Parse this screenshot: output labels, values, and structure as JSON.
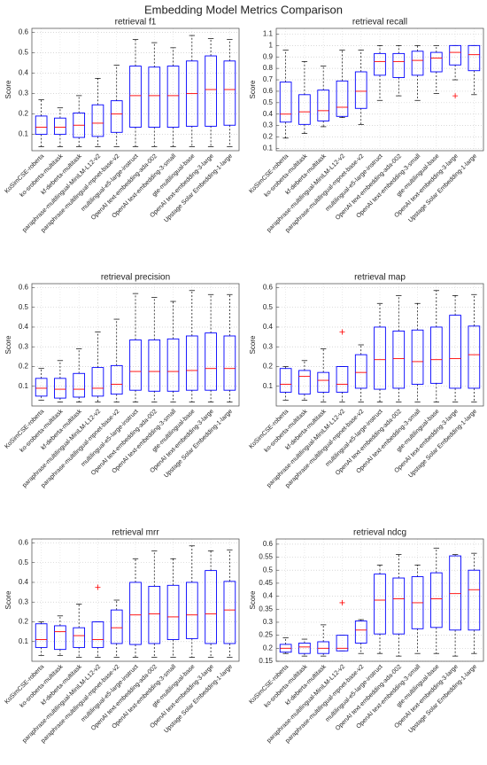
{
  "title": "Embedding Model Metrics Comparison",
  "chart_data": [
    {
      "type": "box",
      "title": "retrieval f1",
      "ylabel": "Score",
      "categories": [
        "KoSimCSE-roberta",
        "ko-sroberta-multitask",
        "kf-deberta-multitask",
        "paraphrase-multilingual-MiniLM-L12-v2",
        "paraphrase-multilingual-mpnet-base-v2",
        "multilingual-e5-large-instruct",
        "OpenAI text-embedding-ada-002",
        "OpenAI text-embedding-3-small",
        "gte-multilingual-base",
        "OpenAI text-embedding-3-large",
        "Upstage Solar Embedding-1-large"
      ],
      "whisker_low": [
        0.04,
        0.04,
        0.04,
        0.04,
        0.04,
        0.04,
        0.04,
        0.04,
        0.04,
        0.04,
        0.04
      ],
      "q1": [
        0.1,
        0.1,
        0.085,
        0.09,
        0.11,
        0.135,
        0.135,
        0.135,
        0.14,
        0.14,
        0.145
      ],
      "median": [
        0.135,
        0.135,
        0.145,
        0.155,
        0.2,
        0.29,
        0.29,
        0.29,
        0.3,
        0.32,
        0.32
      ],
      "q3": [
        0.19,
        0.18,
        0.205,
        0.245,
        0.265,
        0.435,
        0.43,
        0.435,
        0.46,
        0.485,
        0.46
      ],
      "whisker_high": [
        0.27,
        0.23,
        0.29,
        0.375,
        0.44,
        0.565,
        0.55,
        0.525,
        0.585,
        0.57,
        0.565
      ],
      "outliers": [
        [],
        [],
        [],
        [],
        [],
        [],
        [],
        [],
        [],
        [],
        []
      ],
      "ylim": [
        0.02,
        0.62
      ],
      "yticks": [
        0.1,
        0.2,
        0.3,
        0.4,
        0.5,
        0.6
      ],
      "grid": true,
      "box_color": "#0000ff",
      "median_color": "#ff0000"
    },
    {
      "type": "box",
      "title": "retrieval recall",
      "ylabel": "Score",
      "categories": [
        "KoSimCSE-roberta",
        "ko-sroberta-multitask",
        "kf-deberta-multitask",
        "paraphrase-multilingual-MiniLM-L12-v2",
        "paraphrase-multilingual-mpnet-base-v2",
        "multilingual-e5-large-instruct",
        "OpenAI text-embedding-ada-002",
        "OpenAI text-embedding-3-small",
        "gte-multilingual-base",
        "OpenAI text-embedding-3-large",
        "Upstage Solar Embedding-1-large"
      ],
      "whisker_low": [
        0.19,
        0.23,
        0.29,
        0.37,
        0.31,
        0.52,
        0.56,
        0.52,
        0.58,
        0.7,
        0.57
      ],
      "q1": [
        0.33,
        0.31,
        0.34,
        0.38,
        0.45,
        0.74,
        0.72,
        0.74,
        0.77,
        0.83,
        0.78
      ],
      "median": [
        0.4,
        0.42,
        0.43,
        0.46,
        0.6,
        0.86,
        0.86,
        0.87,
        0.89,
        0.94,
        0.92
      ],
      "q3": [
        0.68,
        0.57,
        0.61,
        0.69,
        0.77,
        0.93,
        0.93,
        0.95,
        0.94,
        1.0,
        1.0
      ],
      "whisker_high": [
        0.96,
        0.86,
        0.82,
        0.96,
        0.96,
        1.0,
        1.0,
        1.0,
        1.0,
        1.0,
        1.0
      ],
      "outliers": [
        [],
        [],
        [],
        [],
        [],
        [],
        [],
        [],
        [],
        [
          0.56
        ],
        []
      ],
      "ylim": [
        0.08,
        1.15
      ],
      "yticks": [
        0.1,
        0.2,
        0.3,
        0.4,
        0.5,
        0.6,
        0.7,
        0.8,
        0.9,
        1,
        1.1
      ],
      "grid": true,
      "box_color": "#0000ff",
      "median_color": "#ff0000"
    },
    {
      "type": "box",
      "title": "retrieval precision",
      "ylabel": "Score",
      "categories": [
        "KoSimCSE-roberta",
        "ko-sroberta-multitask",
        "kf-deberta-multitask",
        "paraphrase-multilingual-MiniLM-L12-v2",
        "paraphrase-multilingual-mpnet-base-v2",
        "multilingual-e5-large-instruct",
        "OpenAI text-embedding-ada-002",
        "OpenAI text-embedding-3-small",
        "gte-multilingual-base",
        "OpenAI text-embedding-3-large",
        "Upstage Solar Embedding-1-large"
      ],
      "whisker_low": [
        0.03,
        0.02,
        0.02,
        0.02,
        0.02,
        0.02,
        0.02,
        0.02,
        0.02,
        0.02,
        0.02
      ],
      "q1": [
        0.05,
        0.04,
        0.045,
        0.05,
        0.06,
        0.08,
        0.075,
        0.075,
        0.08,
        0.08,
        0.08
      ],
      "median": [
        0.09,
        0.085,
        0.085,
        0.09,
        0.11,
        0.175,
        0.175,
        0.175,
        0.18,
        0.19,
        0.19
      ],
      "q3": [
        0.14,
        0.14,
        0.165,
        0.195,
        0.205,
        0.335,
        0.335,
        0.34,
        0.355,
        0.37,
        0.355
      ],
      "whisker_high": [
        0.19,
        0.23,
        0.29,
        0.375,
        0.44,
        0.57,
        0.55,
        0.53,
        0.585,
        0.565,
        0.565
      ],
      "outliers": [
        [],
        [],
        [],
        [],
        [],
        [],
        [],
        [],
        [],
        [],
        []
      ],
      "ylim": [
        0,
        0.62
      ],
      "yticks": [
        0.1,
        0.2,
        0.3,
        0.4,
        0.5,
        0.6
      ],
      "grid": true,
      "box_color": "#0000ff",
      "median_color": "#ff0000"
    },
    {
      "type": "box",
      "title": "retrieval map",
      "ylabel": "Score",
      "categories": [
        "KoSimCSE-roberta",
        "ko-sroberta-multitask",
        "kf-deberta-multitask",
        "paraphrase-multilingual-MiniLM-L12-v2",
        "paraphrase-multilingual-mpnet-base-v2",
        "multilingual-e5-large-instruct",
        "OpenAI text-embedding-ada-002",
        "OpenAI text-embedding-3-small",
        "gte-multilingual-base",
        "OpenAI text-embedding-3-large",
        "Upstage Solar Embedding-1-large"
      ],
      "whisker_low": [
        0.03,
        0.03,
        0.02,
        0.02,
        0.02,
        0.02,
        0.02,
        0.02,
        0.02,
        0.02,
        0.02
      ],
      "q1": [
        0.07,
        0.06,
        0.07,
        0.07,
        0.09,
        0.085,
        0.09,
        0.11,
        0.115,
        0.09,
        0.09
      ],
      "median": [
        0.11,
        0.15,
        0.13,
        0.11,
        0.17,
        0.235,
        0.24,
        0.225,
        0.235,
        0.24,
        0.26
      ],
      "q3": [
        0.19,
        0.18,
        0.17,
        0.2,
        0.26,
        0.4,
        0.38,
        0.385,
        0.4,
        0.46,
        0.405
      ],
      "whisker_high": [
        0.2,
        0.23,
        0.29,
        0.2,
        0.31,
        0.52,
        0.56,
        0.52,
        0.585,
        0.56,
        0.565
      ],
      "outliers": [
        [],
        [],
        [],
        [
          0.375
        ],
        [],
        [],
        [],
        [],
        [],
        [],
        []
      ],
      "ylim": [
        0,
        0.62
      ],
      "yticks": [
        0.1,
        0.2,
        0.3,
        0.4,
        0.5,
        0.6
      ],
      "grid": true,
      "box_color": "#0000ff",
      "median_color": "#ff0000"
    },
    {
      "type": "box",
      "title": "retrieval mrr",
      "ylabel": "Score",
      "categories": [
        "KoSimCSE-roberta",
        "ko-sroberta-multitask",
        "kf-deberta-multitask",
        "paraphrase-multilingual-MiniLM-L12-v2",
        "paraphrase-multilingual-mpnet-base-v2",
        "multilingual-e5-large-instruct",
        "OpenAI text-embedding-ada-002",
        "OpenAI text-embedding-3-small",
        "gte-multilingual-base",
        "OpenAI text-embedding-3-large",
        "Upstage Solar Embedding-1-large"
      ],
      "whisker_low": [
        0.03,
        0.03,
        0.02,
        0.02,
        0.02,
        0.02,
        0.02,
        0.02,
        0.02,
        0.02,
        0.02
      ],
      "q1": [
        0.07,
        0.06,
        0.07,
        0.07,
        0.09,
        0.085,
        0.09,
        0.11,
        0.115,
        0.09,
        0.09
      ],
      "median": [
        0.11,
        0.15,
        0.13,
        0.11,
        0.17,
        0.235,
        0.24,
        0.225,
        0.235,
        0.24,
        0.26
      ],
      "q3": [
        0.19,
        0.18,
        0.17,
        0.2,
        0.26,
        0.4,
        0.38,
        0.385,
        0.4,
        0.46,
        0.405
      ],
      "whisker_high": [
        0.2,
        0.23,
        0.29,
        0.2,
        0.31,
        0.52,
        0.56,
        0.52,
        0.585,
        0.56,
        0.565
      ],
      "outliers": [
        [],
        [],
        [],
        [
          0.375
        ],
        [],
        [],
        [],
        [],
        [],
        [],
        []
      ],
      "ylim": [
        0,
        0.62
      ],
      "yticks": [
        0.1,
        0.2,
        0.3,
        0.4,
        0.5,
        0.6
      ],
      "grid": true,
      "box_color": "#0000ff",
      "median_color": "#ff0000"
    },
    {
      "type": "box",
      "title": "retrieval ndcg",
      "ylabel": "Score",
      "categories": [
        "KoSimCSE-roberta",
        "ko-sroberta-multitask",
        "kf-deberta-multitask",
        "paraphrase-multilingual-MiniLM-L12-v2",
        "paraphrase-multilingual-mpnet-base-v2",
        "multilingual-e5-large-instruct",
        "OpenAI text-embedding-ada-002",
        "OpenAI text-embedding-3-small",
        "gte-multilingual-base",
        "OpenAI text-embedding-3-large",
        "Upstage Solar Embedding-1-large"
      ],
      "whisker_low": [
        0.18,
        0.17,
        0.17,
        0.19,
        0.18,
        0.18,
        0.17,
        0.18,
        0.18,
        0.17,
        0.18
      ],
      "q1": [
        0.185,
        0.18,
        0.18,
        0.19,
        0.22,
        0.255,
        0.255,
        0.275,
        0.28,
        0.27,
        0.27
      ],
      "median": [
        0.2,
        0.205,
        0.2,
        0.2,
        0.27,
        0.385,
        0.39,
        0.375,
        0.39,
        0.41,
        0.425
      ],
      "q3": [
        0.215,
        0.22,
        0.225,
        0.25,
        0.305,
        0.485,
        0.47,
        0.475,
        0.49,
        0.555,
        0.5
      ],
      "whisker_high": [
        0.24,
        0.235,
        0.29,
        0.25,
        0.31,
        0.52,
        0.56,
        0.52,
        0.585,
        0.56,
        0.565
      ],
      "outliers": [
        [],
        [],
        [],
        [
          0.375
        ],
        [],
        [],
        [],
        [],
        [],
        [],
        []
      ],
      "ylim": [
        0.15,
        0.62
      ],
      "yticks": [
        0.15,
        0.2,
        0.25,
        0.3,
        0.35,
        0.4,
        0.45,
        0.5,
        0.55,
        0.6
      ],
      "grid": true,
      "box_color": "#0000ff",
      "median_color": "#ff0000"
    }
  ]
}
